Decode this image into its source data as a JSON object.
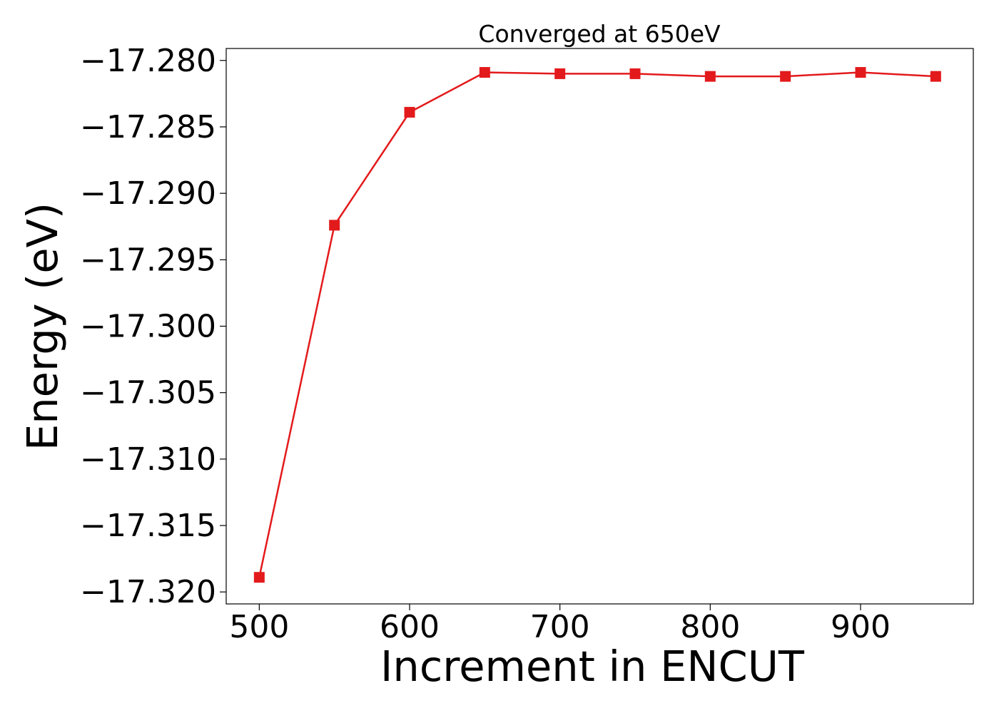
{
  "chart_data": {
    "type": "line",
    "title": "Converged at 650eV",
    "xlabel": "Increment in ENCUT",
    "ylabel": "Energy (eV)",
    "xlim": [
      478,
      975
    ],
    "ylim": [
      -17.3209,
      -17.2791
    ],
    "xticks": [
      500,
      600,
      700,
      800,
      900
    ],
    "xtick_labels": [
      "500",
      "600",
      "700",
      "800",
      "900"
    ],
    "yticks": [
      -17.28,
      -17.285,
      -17.29,
      -17.295,
      -17.3,
      -17.305,
      -17.31,
      -17.315,
      -17.32
    ],
    "ytick_labels": [
      "−17.280",
      "−17.285",
      "−17.290",
      "−17.295",
      "−17.300",
      "−17.305",
      "−17.310",
      "−17.315",
      "−17.320"
    ],
    "grid": false,
    "series": [
      {
        "color": "#e31a1c",
        "marker": "square",
        "x": [
          500,
          550,
          600,
          650,
          700,
          750,
          800,
          850,
          900,
          950
        ],
        "y": [
          -17.3189,
          -17.2924,
          -17.2839,
          -17.2809,
          -17.281,
          -17.281,
          -17.2812,
          -17.2812,
          -17.2809,
          -17.2812
        ]
      }
    ]
  }
}
